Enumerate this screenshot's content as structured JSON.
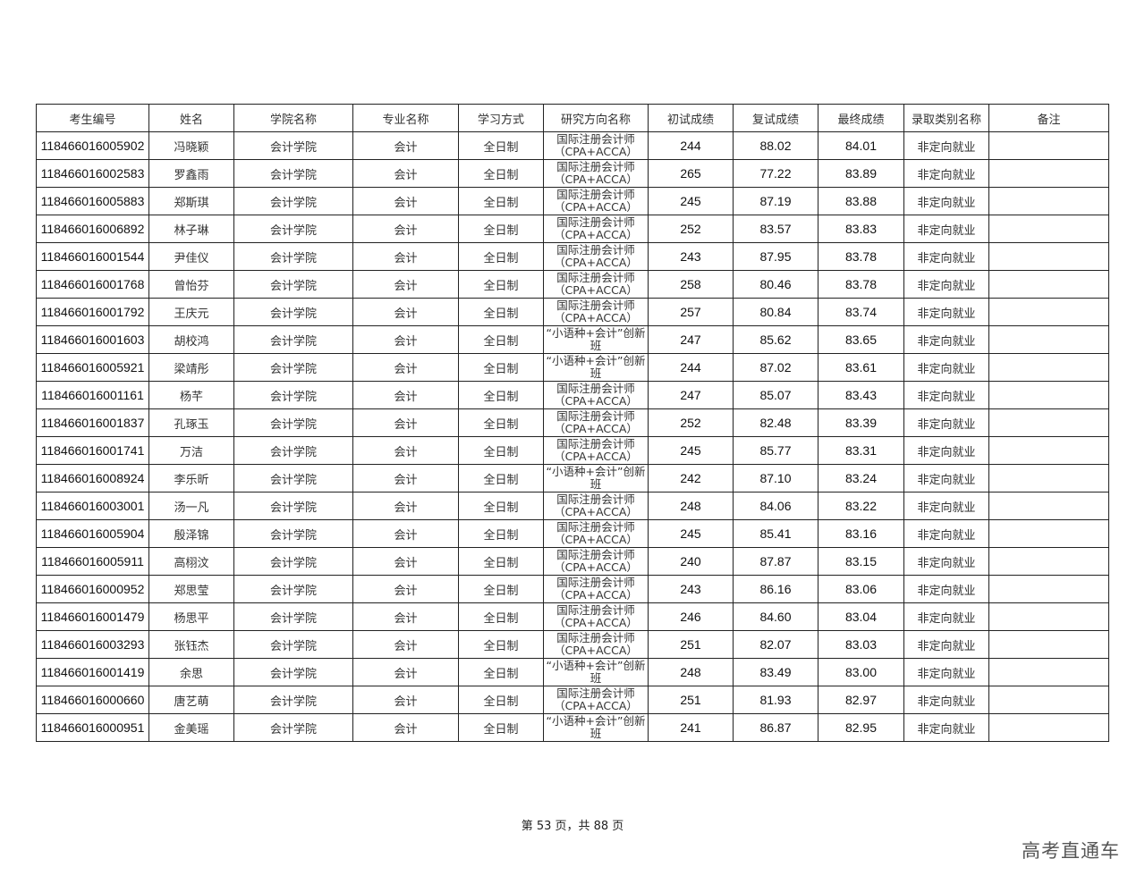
{
  "table": {
    "headers": [
      "考生编号",
      "姓名",
      "学院名称",
      "专业名称",
      "学习方式",
      "研究方向名称",
      "初试成绩",
      "复试成绩",
      "最终成绩",
      "录取类别名称",
      "备注"
    ],
    "rows": [
      {
        "id": "118466016005902",
        "name": "冯晓颖",
        "college": "会计学院",
        "major": "会计",
        "mode": "全日制",
        "direction": "国际注册会计师\n（CPA+ACCA）",
        "prelim": "244",
        "retest": "88.02",
        "final": "84.01",
        "category": "非定向就业",
        "note": ""
      },
      {
        "id": "118466016002583",
        "name": "罗鑫雨",
        "college": "会计学院",
        "major": "会计",
        "mode": "全日制",
        "direction": "国际注册会计师\n（CPA+ACCA）",
        "prelim": "265",
        "retest": "77.22",
        "final": "83.89",
        "category": "非定向就业",
        "note": ""
      },
      {
        "id": "118466016005883",
        "name": "郑斯琪",
        "college": "会计学院",
        "major": "会计",
        "mode": "全日制",
        "direction": "国际注册会计师\n（CPA+ACCA）",
        "prelim": "245",
        "retest": "87.19",
        "final": "83.88",
        "category": "非定向就业",
        "note": ""
      },
      {
        "id": "118466016006892",
        "name": "林子琳",
        "college": "会计学院",
        "major": "会计",
        "mode": "全日制",
        "direction": "国际注册会计师\n（CPA+ACCA）",
        "prelim": "252",
        "retest": "83.57",
        "final": "83.83",
        "category": "非定向就业",
        "note": ""
      },
      {
        "id": "118466016001544",
        "name": "尹佳仪",
        "college": "会计学院",
        "major": "会计",
        "mode": "全日制",
        "direction": "国际注册会计师\n（CPA+ACCA）",
        "prelim": "243",
        "retest": "87.95",
        "final": "83.78",
        "category": "非定向就业",
        "note": ""
      },
      {
        "id": "118466016001768",
        "name": "曾怡芬",
        "college": "会计学院",
        "major": "会计",
        "mode": "全日制",
        "direction": "国际注册会计师\n（CPA+ACCA）",
        "prelim": "258",
        "retest": "80.46",
        "final": "83.78",
        "category": "非定向就业",
        "note": ""
      },
      {
        "id": "118466016001792",
        "name": "王庆元",
        "college": "会计学院",
        "major": "会计",
        "mode": "全日制",
        "direction": "国际注册会计师\n（CPA+ACCA）",
        "prelim": "257",
        "retest": "80.84",
        "final": "83.74",
        "category": "非定向就业",
        "note": ""
      },
      {
        "id": "118466016001603",
        "name": "胡校鸿",
        "college": "会计学院",
        "major": "会计",
        "mode": "全日制",
        "direction": "“小语种+会计”创新\n班",
        "prelim": "247",
        "retest": "85.62",
        "final": "83.65",
        "category": "非定向就业",
        "note": ""
      },
      {
        "id": "118466016005921",
        "name": "梁靖彤",
        "college": "会计学院",
        "major": "会计",
        "mode": "全日制",
        "direction": "“小语种+会计”创新\n班",
        "prelim": "244",
        "retest": "87.02",
        "final": "83.61",
        "category": "非定向就业",
        "note": ""
      },
      {
        "id": "118466016001161",
        "name": "杨芊",
        "college": "会计学院",
        "major": "会计",
        "mode": "全日制",
        "direction": "国际注册会计师\n（CPA+ACCA）",
        "prelim": "247",
        "retest": "85.07",
        "final": "83.43",
        "category": "非定向就业",
        "note": ""
      },
      {
        "id": "118466016001837",
        "name": "孔琢玉",
        "college": "会计学院",
        "major": "会计",
        "mode": "全日制",
        "direction": "国际注册会计师\n（CPA+ACCA）",
        "prelim": "252",
        "retest": "82.48",
        "final": "83.39",
        "category": "非定向就业",
        "note": ""
      },
      {
        "id": "118466016001741",
        "name": "万洁",
        "college": "会计学院",
        "major": "会计",
        "mode": "全日制",
        "direction": "国际注册会计师\n（CPA+ACCA）",
        "prelim": "245",
        "retest": "85.77",
        "final": "83.31",
        "category": "非定向就业",
        "note": ""
      },
      {
        "id": "118466016008924",
        "name": "李乐昕",
        "college": "会计学院",
        "major": "会计",
        "mode": "全日制",
        "direction": "“小语种+会计”创新\n班",
        "prelim": "242",
        "retest": "87.10",
        "final": "83.24",
        "category": "非定向就业",
        "note": ""
      },
      {
        "id": "118466016003001",
        "name": "汤一凡",
        "college": "会计学院",
        "major": "会计",
        "mode": "全日制",
        "direction": "国际注册会计师\n（CPA+ACCA）",
        "prelim": "248",
        "retest": "84.06",
        "final": "83.22",
        "category": "非定向就业",
        "note": ""
      },
      {
        "id": "118466016005904",
        "name": "殷泽锦",
        "college": "会计学院",
        "major": "会计",
        "mode": "全日制",
        "direction": "国际注册会计师\n（CPA+ACCA）",
        "prelim": "245",
        "retest": "85.41",
        "final": "83.16",
        "category": "非定向就业",
        "note": ""
      },
      {
        "id": "118466016005911",
        "name": "高栩汶",
        "college": "会计学院",
        "major": "会计",
        "mode": "全日制",
        "direction": "国际注册会计师\n（CPA+ACCA）",
        "prelim": "240",
        "retest": "87.87",
        "final": "83.15",
        "category": "非定向就业",
        "note": ""
      },
      {
        "id": "118466016000952",
        "name": "郑思莹",
        "college": "会计学院",
        "major": "会计",
        "mode": "全日制",
        "direction": "国际注册会计师\n（CPA+ACCA）",
        "prelim": "243",
        "retest": "86.16",
        "final": "83.06",
        "category": "非定向就业",
        "note": ""
      },
      {
        "id": "118466016001479",
        "name": "杨思平",
        "college": "会计学院",
        "major": "会计",
        "mode": "全日制",
        "direction": "国际注册会计师\n（CPA+ACCA）",
        "prelim": "246",
        "retest": "84.60",
        "final": "83.04",
        "category": "非定向就业",
        "note": ""
      },
      {
        "id": "118466016003293",
        "name": "张钰杰",
        "college": "会计学院",
        "major": "会计",
        "mode": "全日制",
        "direction": "国际注册会计师\n（CPA+ACCA）",
        "prelim": "251",
        "retest": "82.07",
        "final": "83.03",
        "category": "非定向就业",
        "note": ""
      },
      {
        "id": "118466016001419",
        "name": "余思",
        "college": "会计学院",
        "major": "会计",
        "mode": "全日制",
        "direction": "“小语种+会计”创新\n班",
        "prelim": "248",
        "retest": "83.49",
        "final": "83.00",
        "category": "非定向就业",
        "note": ""
      },
      {
        "id": "118466016000660",
        "name": "唐艺萌",
        "college": "会计学院",
        "major": "会计",
        "mode": "全日制",
        "direction": "国际注册会计师\n（CPA+ACCA）",
        "prelim": "251",
        "retest": "81.93",
        "final": "82.97",
        "category": "非定向就业",
        "note": ""
      },
      {
        "id": "118466016000951",
        "name": "金美瑶",
        "college": "会计学院",
        "major": "会计",
        "mode": "全日制",
        "direction": "“小语种+会计”创新\n班",
        "prelim": "241",
        "retest": "86.87",
        "final": "82.95",
        "category": "非定向就业",
        "note": ""
      }
    ]
  },
  "footer": {
    "page_text": "第 53 页，共 88 页"
  },
  "watermark": "高考直通车"
}
